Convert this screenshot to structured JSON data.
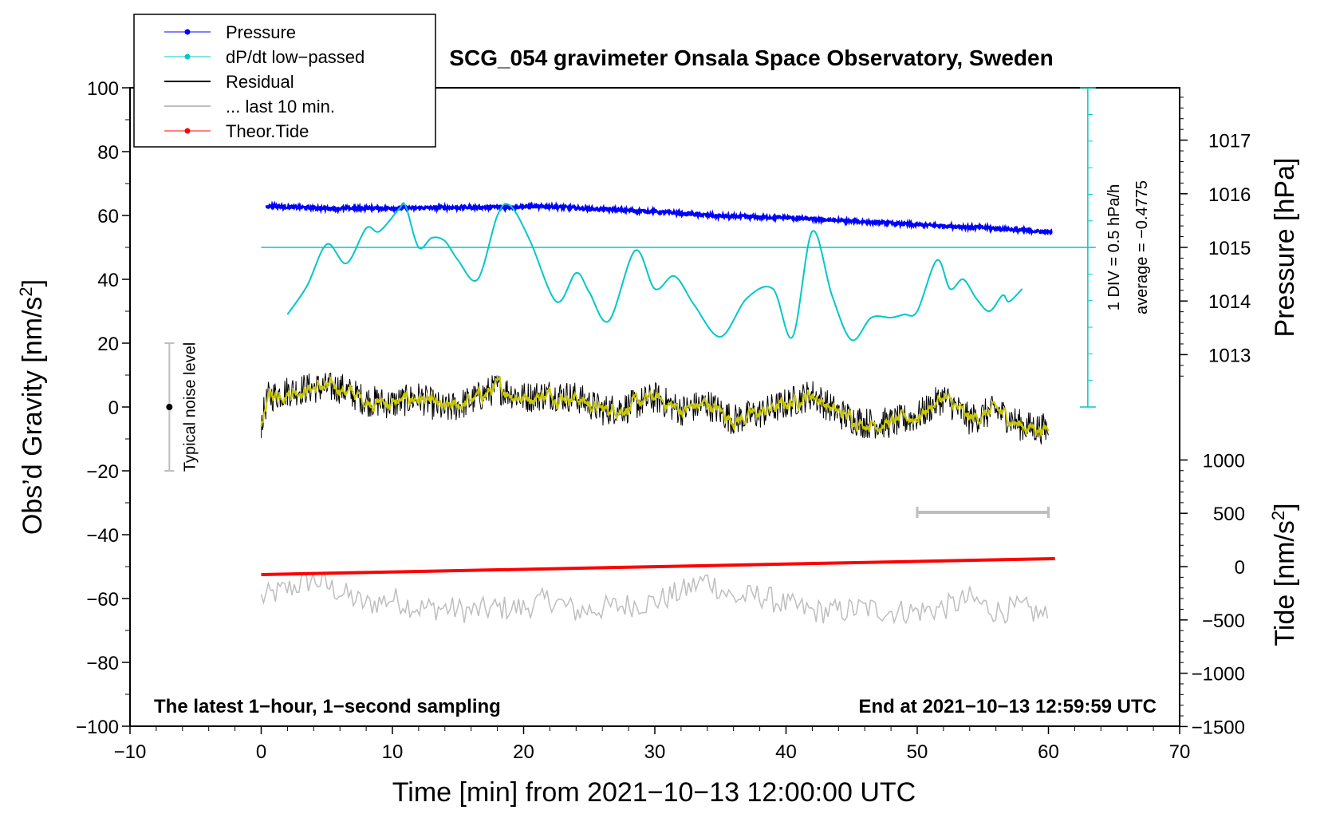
{
  "chart_data": {
    "type": "line",
    "title": "SCG_054 gravimeter Onsala Space Observatory, Sweden",
    "xlabel": "Time [min] from 2021−10−13 12:00:00 UTC",
    "ylabel": "Obs’d Gravity [nm/s2]",
    "ylabel_main": "Obs’d Gravity [nm/s",
    "ylabel_sup": "2",
    "ylabel_end": "]",
    "xlim": [
      -10,
      70
    ],
    "ylim": [
      -100,
      100
    ],
    "x_ticks": [
      -10,
      0,
      10,
      20,
      30,
      40,
      50,
      60,
      70
    ],
    "x_tick_labels": [
      "−10",
      "0",
      "10",
      "20",
      "30",
      "40",
      "50",
      "60",
      "70"
    ],
    "y_ticks": [
      -100,
      -80,
      -60,
      -40,
      -20,
      0,
      20,
      40,
      60,
      80,
      100
    ],
    "y_tick_labels": [
      "−100",
      "−80",
      "−60",
      "−40",
      "−20",
      "0",
      "20",
      "40",
      "60",
      "80",
      "100"
    ],
    "right_axes": {
      "pressure": {
        "label": "Pressure [hPa]",
        "ticks": [
          1013,
          1014,
          1015,
          1016,
          1017
        ],
        "tick_labels": [
          "1013",
          "1014",
          "1015",
          "1016",
          "1017"
        ],
        "gravity_at_1015": 50,
        "gravity_per_hPa": 16.8
      },
      "tide": {
        "label": "Tide [nm/s2]",
        "label_main": "Tide [nm/s",
        "label_sup": "2",
        "label_end": "]",
        "ticks": [
          1000,
          500,
          0,
          -500,
          -1000,
          -1500
        ],
        "tick_labels": [
          "1000",
          "500",
          "0",
          "−500",
          "−1000",
          "−1500"
        ],
        "gravity_at_0": -50,
        "gravity_per_500": 16.7
      }
    },
    "legend": [
      {
        "name": "Pressure",
        "color": "#0000ff",
        "marker": true
      },
      {
        "name": "dP/dt low−passed",
        "color": "#00c8c8",
        "marker": true
      },
      {
        "name": "Residual",
        "color": "#000000",
        "marker": false
      },
      {
        "name": "... last 10 min.",
        "color": "#bebebe",
        "marker": false
      },
      {
        "name": "Theor.Tide",
        "color": "#ff0000",
        "marker": true
      }
    ],
    "series": [
      {
        "name": "Pressure",
        "color": "#0000ff",
        "x": [
          0,
          5,
          10,
          15,
          20,
          22,
          25,
          30,
          35,
          40,
          45,
          50,
          55,
          60
        ],
        "values": [
          63,
          62.2,
          62.3,
          62.5,
          62.7,
          62.8,
          62.1,
          61.2,
          59.8,
          59.3,
          58.2,
          57.1,
          56.2,
          54.8
        ]
      },
      {
        "name": "dP/dt low−passed",
        "color": "#00c8c8",
        "x": [
          2,
          3.5,
          5,
          6.5,
          8,
          9,
          10.5,
          11,
          12,
          13,
          14,
          15,
          16.5,
          18,
          19,
          20.5,
          22.5,
          24,
          25,
          26.5,
          28.5,
          30,
          31.5,
          33,
          35,
          37,
          39,
          40.5,
          42,
          43.5,
          45,
          46.5,
          48,
          49,
          50,
          51.5,
          52.5,
          53.5,
          54.5,
          55.5,
          56.5,
          57,
          58
        ],
        "values": [
          29,
          38,
          51,
          45,
          56,
          55,
          62,
          63,
          50,
          53,
          52,
          46,
          40,
          60,
          63,
          52,
          33,
          42,
          36,
          27,
          49,
          37,
          41,
          32,
          22,
          34,
          37,
          22,
          55,
          35,
          21,
          28,
          28,
          29,
          30,
          46,
          37,
          40,
          34,
          30,
          35,
          33,
          37
        ]
      },
      {
        "name": "Residual",
        "color": "#000000",
        "x": [
          0,
          0.5,
          2,
          4,
          6,
          8,
          10,
          12,
          14,
          16,
          18,
          20,
          22,
          24,
          26,
          28,
          30,
          32,
          34,
          36,
          38,
          40,
          42,
          44,
          46,
          48,
          50,
          52,
          54,
          56,
          58,
          60
        ],
        "values": [
          -5,
          3,
          5,
          6,
          6,
          2,
          1,
          3,
          -1,
          2,
          6,
          3,
          4,
          3,
          -1,
          0,
          3,
          -1,
          1,
          -4,
          -2,
          1,
          4,
          -2,
          -5,
          -5,
          -3,
          3,
          -4,
          -1,
          -6,
          -7
        ],
        "noise_amplitude": 5
      },
      {
        "name": "... last 10 min.",
        "color": "#bebebe",
        "x": [
          0,
          2,
          4,
          6,
          8,
          10,
          12,
          14,
          16,
          18,
          20,
          22,
          24,
          26,
          28,
          30,
          32,
          34,
          36,
          38,
          40,
          42,
          44,
          46,
          48,
          50,
          52,
          54,
          56,
          58,
          60
        ],
        "values": [
          -60,
          -57,
          -54,
          -58,
          -62,
          -60,
          -63,
          -63,
          -64,
          -63,
          -63,
          -60,
          -64,
          -63,
          -62,
          -61,
          -58,
          -54,
          -60,
          -59,
          -62,
          -64,
          -64,
          -63,
          -64,
          -64,
          -63,
          -60,
          -64,
          -63,
          -66
        ],
        "noise_amplitude": 4
      },
      {
        "name": "Theor.Tide",
        "color": "#ff0000",
        "x": [
          0,
          60.5
        ],
        "values": [
          -52.5,
          -47.5
        ]
      }
    ],
    "noise_bar": {
      "label": "Typical noise level",
      "x": -7,
      "y": 0,
      "low": -20,
      "high": 20
    },
    "dpdt_scale": {
      "label": "1 DIV = 0.5 hPa/h",
      "average_label": "average = −0.4775",
      "x": 63,
      "y_low": 0,
      "y_high": 100,
      "baseline": 50,
      "x_start": 0
    },
    "ten_min_bar": {
      "x_start": 50,
      "x_end": 60,
      "y": -33
    },
    "annotations": {
      "bottom_left": "The latest 1−hour, 1−second sampling",
      "bottom_right": "End at 2021−10−13 12:59:59 UTC"
    },
    "grid": false
  }
}
